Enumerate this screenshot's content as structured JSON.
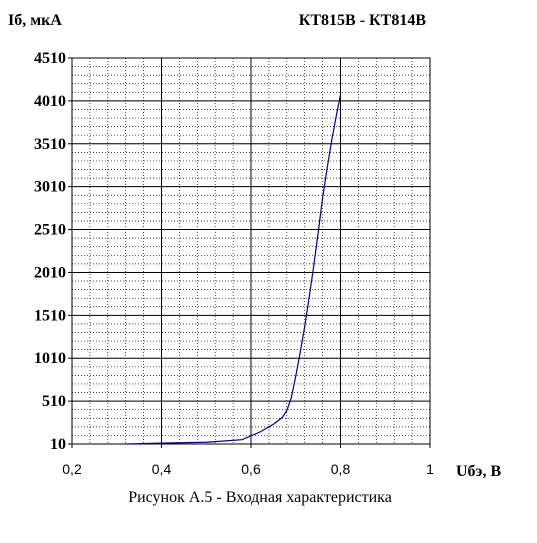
{
  "chart_data": {
    "type": "line",
    "title": "КТ815В - КТ814В",
    "ylabel": "Iб, мкА",
    "xlabel": "Uбэ, В",
    "caption": "Рисунок А.5 - Входная характеристика",
    "xlim": [
      0.2,
      1.0
    ],
    "ylim": [
      10,
      4510
    ],
    "x_ticks": [
      0.2,
      0.4,
      0.6,
      0.8,
      1.0
    ],
    "x_tick_labels": [
      "0,2",
      "0,4",
      "0,6",
      "0,8",
      "1"
    ],
    "y_ticks": [
      10,
      510,
      1010,
      1510,
      2010,
      2510,
      3010,
      3510,
      4010,
      4510
    ],
    "y_tick_labels": [
      "10",
      "510",
      "1010",
      "1510",
      "2010",
      "2510",
      "3010",
      "3510",
      "4010",
      "4510"
    ],
    "grid": true,
    "series": [
      {
        "name": "",
        "x": [
          0.32,
          0.4,
          0.5,
          0.58,
          0.62,
          0.65,
          0.67,
          0.68,
          0.69,
          0.7,
          0.71,
          0.72,
          0.73,
          0.74,
          0.75,
          0.76,
          0.77,
          0.78,
          0.79,
          0.8
        ],
        "y": [
          10,
          20,
          30,
          60,
          150,
          240,
          320,
          400,
          550,
          800,
          1080,
          1380,
          1720,
          2080,
          2470,
          2880,
          3220,
          3540,
          3820,
          4080
        ],
        "color": "#00007f"
      }
    ]
  }
}
